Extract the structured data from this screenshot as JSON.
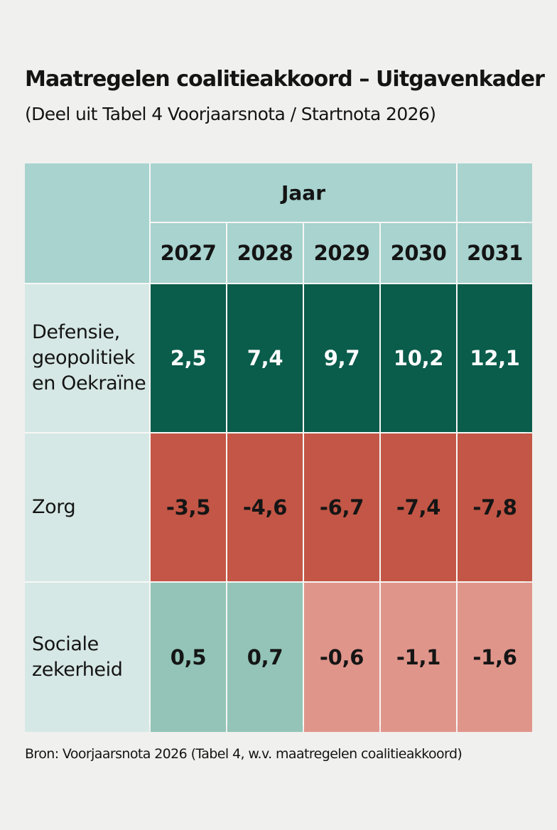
{
  "title": "Maatregelen coalitieakkoord – Uitgavenkader",
  "subtitle": "(Deel uit Tabel 4 Voorjaarsnota / Startnota 2026)",
  "source": "Bron: Voorjaarsnota 2026 (Tabel 4, w.v. maatregelen coalitieakkoord)",
  "colors": {
    "header": "#a8d3cf",
    "row_label": "#d6e8e5",
    "large_increase": "#0a5c4b",
    "large_decrease": "#c35646",
    "small_increase": "#93c4b7",
    "small_decrease": "#e0958b"
  },
  "chart_data": {
    "type": "table",
    "column_group_label": "Jaar",
    "columns": [
      "2027",
      "2028",
      "2029",
      "2030",
      "2031"
    ],
    "rows": [
      {
        "label_lines": [
          "Defensie,",
          "geopolitiek",
          "en Oekraïne"
        ],
        "values": [
          "2,5",
          "7,4",
          "9,7",
          "10,2",
          "12,1"
        ],
        "numeric": [
          2.5,
          7.4,
          9.7,
          10.2,
          12.1
        ]
      },
      {
        "label_lines": [
          "Zorg"
        ],
        "values": [
          "-3,5",
          "-4,6",
          "-6,7",
          "-7,4",
          "-7,8"
        ],
        "numeric": [
          -3.5,
          -4.6,
          -6.7,
          -7.4,
          -7.8
        ]
      },
      {
        "label_lines": [
          "Sociale",
          "zekerheid"
        ],
        "values": [
          "0,5",
          "0,7",
          "-0,6",
          "-1,1",
          "-1,6"
        ],
        "numeric": [
          0.5,
          0.7,
          -0.6,
          -1.1,
          -1.6
        ]
      }
    ]
  }
}
